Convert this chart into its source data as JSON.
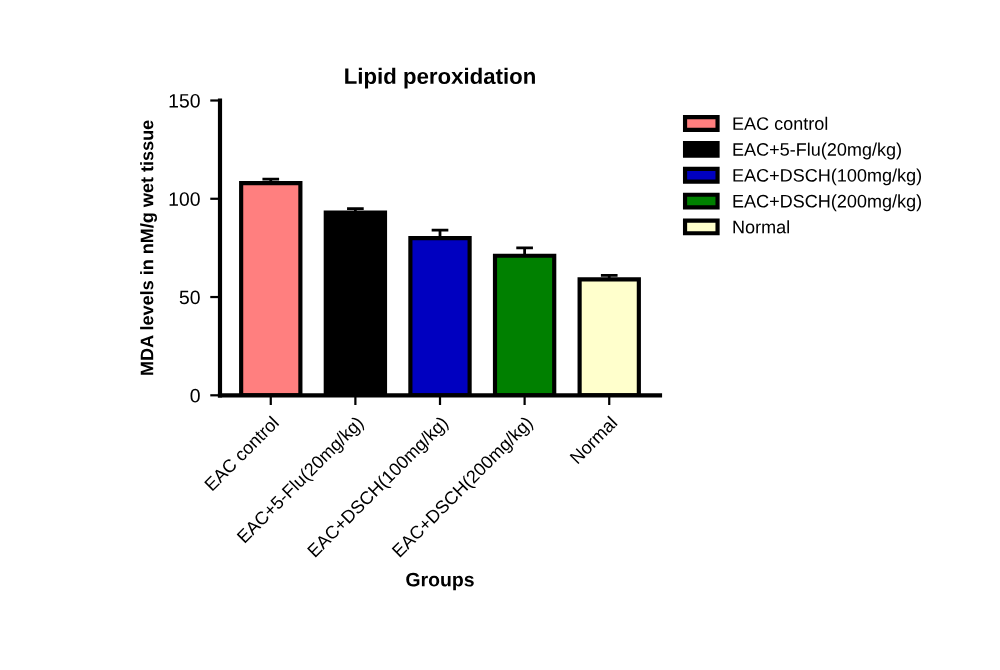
{
  "chart_data": {
    "type": "bar",
    "title": "Lipid peroxidation",
    "xlabel": "Groups",
    "ylabel": "MDA levels in nM/g wet tissue",
    "categories": [
      "EAC control",
      "EAC+5-Flu(20mg/kg)",
      "EAC+DSCH(100mg/kg)",
      "EAC+DSCH(200mg/kg)",
      "Normal"
    ],
    "series": [
      {
        "name": "EAC control",
        "color": "#ff7f7f",
        "values": [
          108,
          null,
          null,
          null,
          null
        ],
        "errors": [
          2,
          null,
          null,
          null,
          null
        ]
      },
      {
        "name": "EAC+5-Flu(20mg/kg)",
        "color": "#000000",
        "values": [
          null,
          93,
          null,
          null,
          null
        ],
        "errors": [
          null,
          2,
          null,
          null,
          null
        ]
      },
      {
        "name": "EAC+DSCH(100mg/kg)",
        "color": "#0000c0",
        "values": [
          null,
          null,
          80,
          null,
          null
        ],
        "errors": [
          null,
          null,
          4,
          null,
          null
        ]
      },
      {
        "name": "EAC+DSCH(200mg/kg)",
        "color": "#008000",
        "values": [
          null,
          null,
          null,
          71,
          null
        ],
        "errors": [
          null,
          null,
          null,
          4,
          null
        ]
      },
      {
        "name": "Normal",
        "color": "#ffffcc",
        "values": [
          null,
          null,
          null,
          null,
          59
        ],
        "errors": [
          null,
          null,
          null,
          null,
          2
        ]
      }
    ],
    "ylim": [
      0,
      150
    ],
    "yticks": [
      0,
      50,
      100,
      150
    ],
    "grid": false,
    "legend": "right"
  }
}
